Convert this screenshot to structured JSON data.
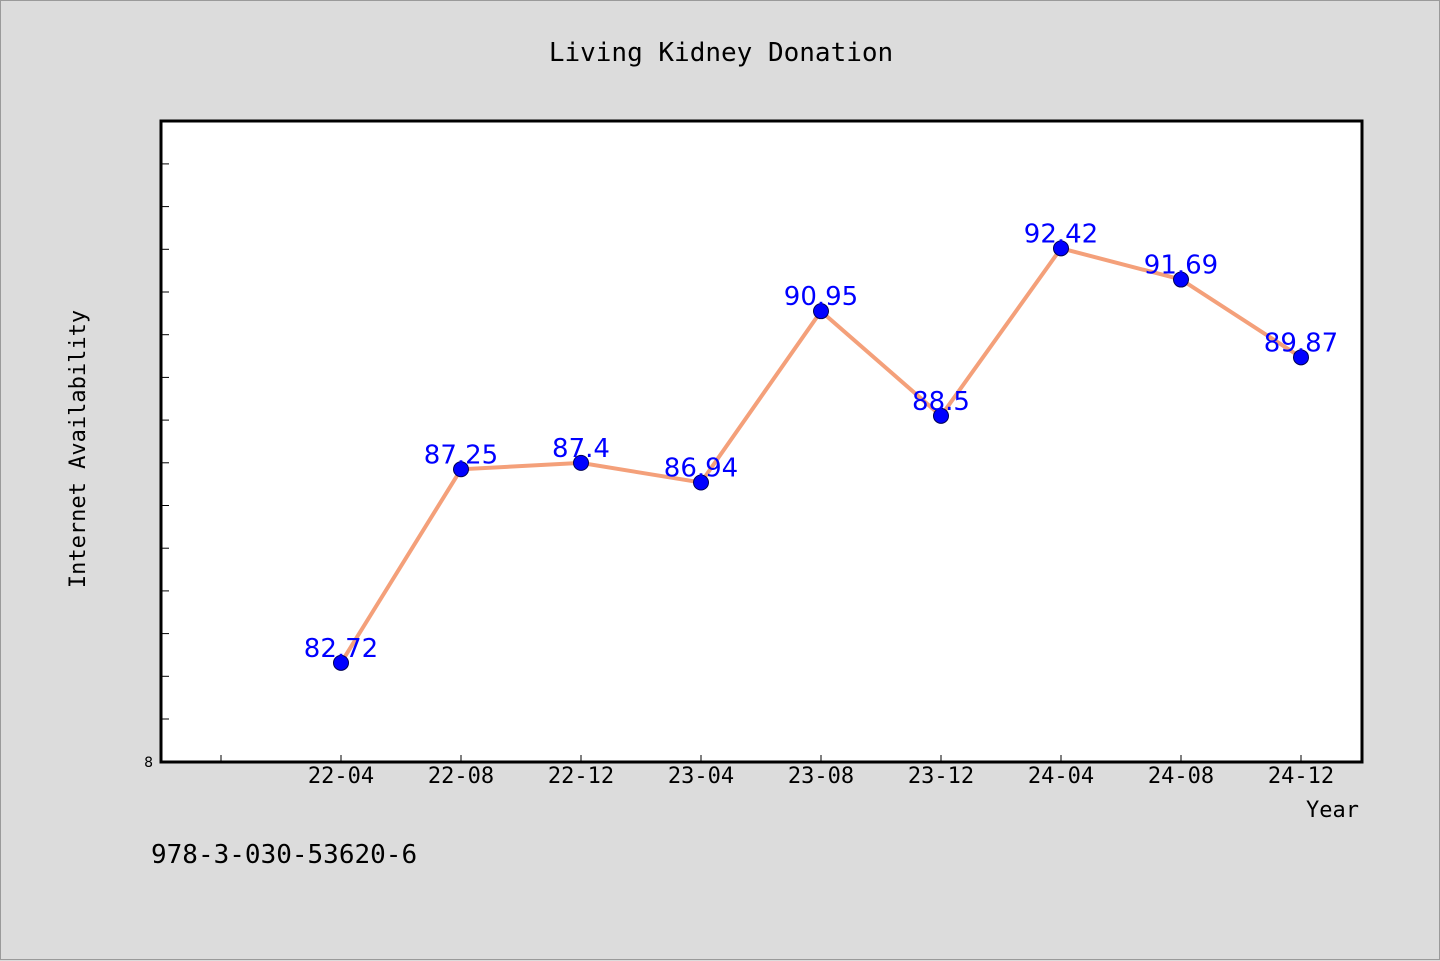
{
  "chart_data": {
    "type": "line",
    "title": "Living Kidney Donation",
    "xlabel": "Year",
    "ylabel": "Internet Availability",
    "categories": [
      "22-04",
      "22-08",
      "22-12",
      "23-04",
      "23-08",
      "23-12",
      "24-04",
      "24-08",
      "24-12"
    ],
    "series": [
      {
        "values": [
          82.72,
          87.25,
          87.4,
          86.94,
          90.95,
          88.5,
          92.42,
          91.69,
          89.87
        ],
        "color": "#f4a07a",
        "marker_color": "#0000ff"
      }
    ],
    "data_labels": [
      "82.72",
      "87.25",
      "87.4",
      "86.94",
      "90.95",
      "88.5",
      "92.42",
      "91.69",
      "89.87"
    ],
    "ylim": [
      80.4,
      95.4
    ],
    "y_tick_label": "8",
    "grid": false,
    "legend": "none"
  },
  "footer_text": "978-3-030-53620-6"
}
